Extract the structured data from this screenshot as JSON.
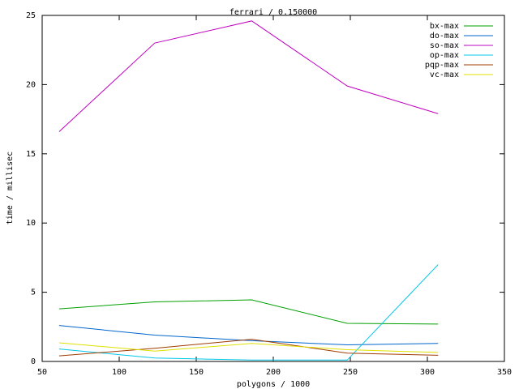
{
  "chart_data": {
    "type": "line",
    "title": "ferrari / 0.150000",
    "x_label": "polygons / 1000",
    "y_label": "time / millisec",
    "x": [
      61,
      123,
      186,
      248,
      307
    ],
    "series": [
      {
        "name": "bx-max",
        "color": "#00a000",
        "values": [
          3.8,
          4.3,
          4.45,
          2.75,
          2.7
        ]
      },
      {
        "name": "do-max",
        "color": "#0066cc",
        "values": [
          2.6,
          1.9,
          1.5,
          1.2,
          1.3
        ]
      },
      {
        "name": "so-max",
        "color": "#c000c0",
        "values": [
          16.6,
          23.0,
          24.6,
          19.9,
          17.9
        ]
      },
      {
        "name": "op-max",
        "color": "#00c8e8",
        "values": [
          0.9,
          0.25,
          0.1,
          0.1,
          7.0
        ]
      },
      {
        "name": "pqp-max",
        "color": "#a03c00",
        "values": [
          0.4,
          0.95,
          1.6,
          0.6,
          0.45
        ]
      },
      {
        "name": "vc-max",
        "color": "#e0e000",
        "values": [
          1.35,
          0.75,
          1.3,
          0.85,
          0.65
        ]
      }
    ],
    "xlim": [
      50,
      350
    ],
    "xticks": [
      50,
      100,
      150,
      200,
      250,
      300,
      350
    ],
    "ylim": [
      0,
      25
    ],
    "yticks": [
      0,
      5,
      10,
      15,
      20,
      25
    ],
    "legend": "top-right"
  }
}
